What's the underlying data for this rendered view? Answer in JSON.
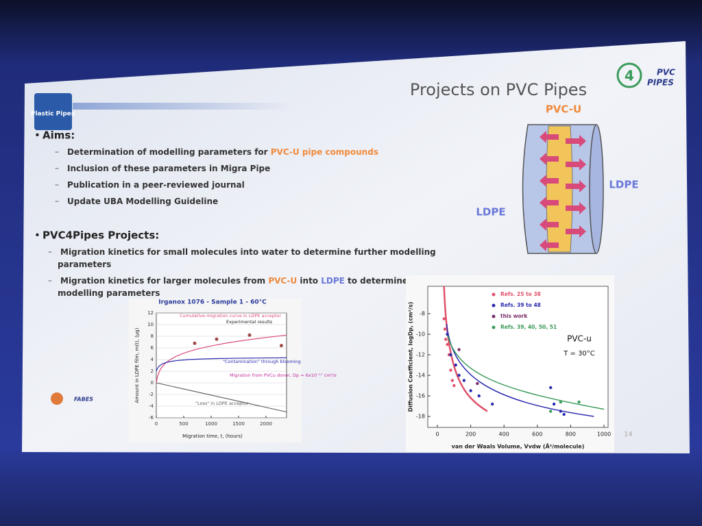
{
  "slide": {
    "title": "Projects on PVC Pipes",
    "logo_left": "Plastic Pipes",
    "logo_right": [
      "PVC",
      "PIPES"
    ],
    "page_number": "14",
    "partner_logo": "FABES",
    "sections": [
      {
        "heading": "Aims:",
        "items": [
          {
            "lines": [
              [
                {
                  "text": "Determination of modelling parameters for "
                },
                {
                  "text": "PVC-U pipe compounds",
                  "color": "#f08a3c"
                }
              ]
            ]
          },
          {
            "lines": [
              [
                {
                  "text": "Inclusion of these parameters in Migra Pipe"
                }
              ]
            ]
          },
          {
            "lines": [
              [
                {
                  "text": "Publication in a peer-reviewed journal"
                }
              ]
            ]
          },
          {
            "lines": [
              [
                {
                  "text": "Update UBA Modelling Guideline"
                }
              ]
            ]
          }
        ]
      },
      {
        "heading": "PVC4Pipes Projects:",
        "items": [
          {
            "lines": [
              [
                {
                  "text": "Migration kinetics for small molecules into water to determine further modelling"
                }
              ],
              [
                {
                  "text": "parameters"
                }
              ]
            ]
          },
          {
            "lines": [
              [
                {
                  "text": "Migration kinetics for larger molecules from "
                },
                {
                  "text": "PVC-U",
                  "color": "#f08a3c"
                },
                {
                  "text": " into "
                },
                {
                  "text": "LDPE",
                  "color": "#6a78d8"
                },
                {
                  "text": " to determine further"
                }
              ],
              [
                {
                  "text": "modelling parameters"
                }
              ]
            ]
          }
        ]
      }
    ],
    "diagram": {
      "center_label": "PVC-U",
      "left_label": "LDPE",
      "right_label": "LDPE"
    },
    "figure_left": {
      "title": "Irganox 1076 - Sample 1 - 60°C",
      "y_label": "Amount in LDPE film, m(t), (µg)",
      "x_label": "Migration time, t, (hours)",
      "yticks": [
        12,
        10,
        8,
        6,
        4,
        2,
        0,
        -2,
        -4,
        -6
      ],
      "xticks": [
        0,
        500,
        1000,
        1500,
        2000
      ],
      "annotations": [
        "Cumulative migration curve in LDPE acceptor",
        "Experimental results",
        "\"Contamination\" through blooming",
        "Migration from PVCu donor, Dp = 6x10⁻¹⁷ cm²/s",
        "\"Loss\" in LDPE acceptor"
      ]
    },
    "figure_right": {
      "y_label": "Diffusion Coefficient, logDp, (cm²/s)",
      "x_label": "van der Waals Volume, Vvdw (Å³/molecule)",
      "yticks": [
        -8,
        -10,
        -12,
        -14,
        -16,
        -18
      ],
      "xticks": [
        0,
        200,
        400,
        600,
        800,
        1000
      ],
      "legend": [
        {
          "name": "Refs. 25 to 38",
          "color": "#e0506a"
        },
        {
          "name": "Refs. 39 to 48",
          "color": "#2a2ab0"
        },
        {
          "name": "this work",
          "color": "#7a2a6a"
        },
        {
          "name": "Refs. 39, 40, 50, 51",
          "color": "#3a9a5a"
        }
      ],
      "annotations": [
        "PVC-u",
        "T = 30°C"
      ]
    }
  }
}
